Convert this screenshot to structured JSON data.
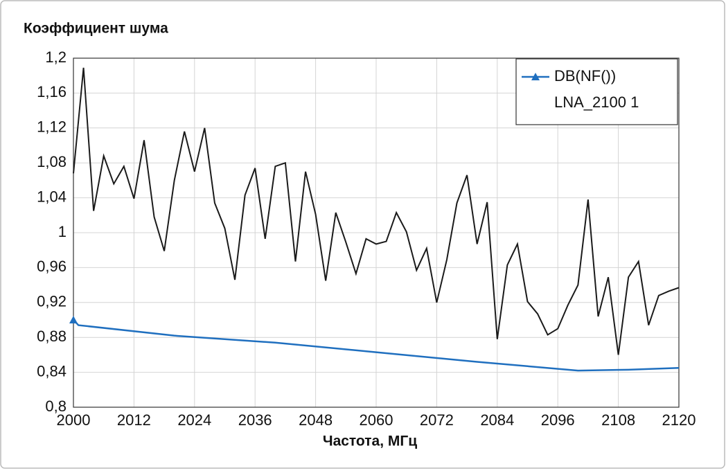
{
  "chart_data": {
    "type": "line",
    "title": "Коэффициент шума",
    "x_label": "Частота, МГц",
    "xlim": [
      2000,
      2120
    ],
    "xticks": [
      2000,
      2012,
      2024,
      2036,
      2048,
      2060,
      2072,
      2084,
      2096,
      2108,
      2120
    ],
    "ylim": [
      0.8,
      1.2
    ],
    "yticks": [
      {
        "value": 0.8,
        "label": "0,8"
      },
      {
        "value": 0.84,
        "label": "0,84"
      },
      {
        "value": 0.88,
        "label": "0,88"
      },
      {
        "value": 0.92,
        "label": "0,92"
      },
      {
        "value": 0.96,
        "label": "0,96"
      },
      1,
      {
        "value": 1.04,
        "label": "1,04"
      },
      {
        "value": 1.08,
        "label": "1,08"
      },
      {
        "value": 1.12,
        "label": "1,12"
      },
      {
        "value": 1.16,
        "label": "1,16"
      },
      {
        "value": 1.2,
        "label": "1,2"
      }
    ],
    "grid": true,
    "legend_position": "upper right",
    "legend_subtitle": "LNA_2100 1",
    "series": [
      {
        "color": "#1a1a1a",
        "x": [
          2000,
          2002,
          2004,
          2006,
          2008,
          2010,
          2012,
          2014,
          2016,
          2018,
          2020,
          2022,
          2024,
          2026,
          2028,
          2030,
          2032,
          2034,
          2036,
          2038,
          2040,
          2042,
          2044,
          2046,
          2048,
          2050,
          2052,
          2054,
          2056,
          2058,
          2060,
          2062,
          2064,
          2066,
          2068,
          2070,
          2072,
          2074,
          2076,
          2078,
          2080,
          2082,
          2084,
          2086,
          2088,
          2090,
          2092,
          2094,
          2096,
          2098,
          2100,
          2102,
          2104,
          2106,
          2108,
          2110,
          2112,
          2114,
          2116,
          2118,
          2120
        ],
        "values": [
          1.068,
          1.189,
          1.025,
          1.088,
          1.056,
          1.076,
          1.039,
          1.106,
          1.018,
          0.979,
          1.06,
          1.116,
          1.07,
          1.12,
          1.034,
          1.005,
          0.946,
          1.043,
          1.074,
          0.993,
          1.076,
          1.08,
          0.967,
          1.07,
          1.021,
          0.945,
          1.023,
          0.989,
          0.953,
          0.993,
          0.987,
          0.99,
          1.023,
          1.001,
          0.957,
          0.982,
          0.92,
          0.969,
          1.034,
          1.066,
          0.987,
          1.035,
          0.878,
          0.963,
          0.987,
          0.921,
          0.907,
          0.883,
          0.89,
          0.917,
          0.94,
          1.038,
          0.904,
          0.949,
          0.86,
          0.949,
          0.967,
          0.894,
          0.928,
          0.933,
          0.937
        ]
      },
      {
        "name": "DB(NF())",
        "color": "#1f6fbf",
        "marker": "triangle",
        "x": [
          2000,
          2001,
          2020,
          2040,
          2060,
          2080,
          2100,
          2110,
          2120
        ],
        "values": [
          0.9,
          0.894,
          0.882,
          0.874,
          0.863,
          0.852,
          0.842,
          0.843,
          0.845
        ]
      }
    ]
  }
}
